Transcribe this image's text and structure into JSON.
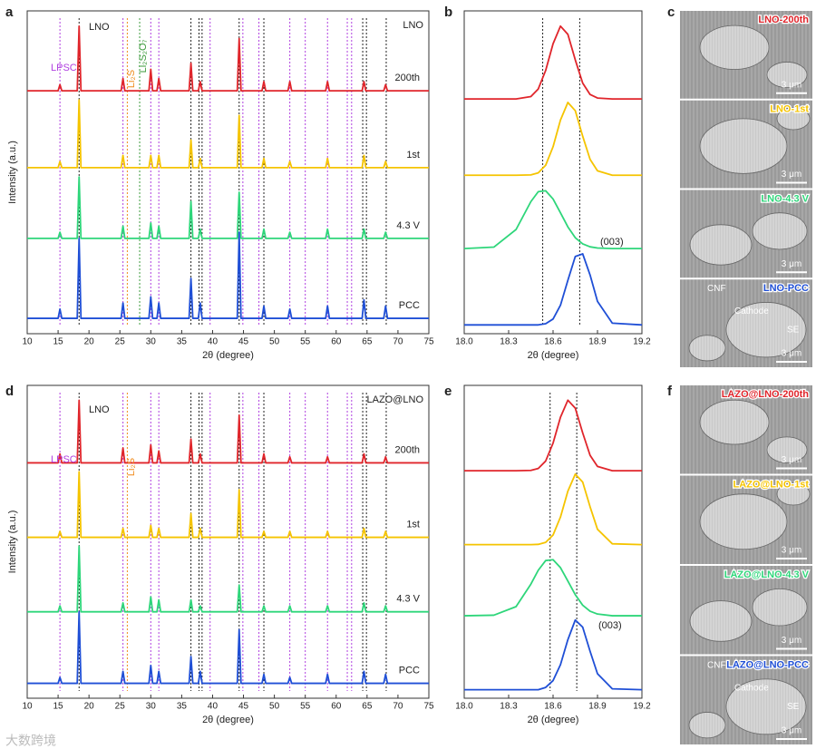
{
  "watermark": "大数跨境",
  "chart_data": [
    {
      "panel": "a",
      "type": "line",
      "xlabel": "2θ (degree)",
      "ylabel": "Intensity (a.u.)",
      "sample_label": "LNO",
      "xlim": [
        10,
        75
      ],
      "xticks": [
        10,
        15,
        20,
        25,
        30,
        35,
        40,
        45,
        50,
        55,
        60,
        65,
        70,
        75
      ],
      "ylim": [
        0,
        105
      ],
      "x": [
        10,
        15.0,
        15.3,
        15.6,
        18.1,
        18.4,
        18.7,
        25.2,
        25.5,
        25.8,
        29.7,
        30.0,
        30.3,
        31.0,
        31.3,
        31.6,
        36.2,
        36.5,
        36.8,
        37.7,
        38.0,
        38.3,
        44.0,
        44.3,
        44.6,
        48.0,
        48.3,
        48.6,
        52.2,
        52.5,
        52.8,
        58.3,
        58.6,
        58.9,
        64.2,
        64.5,
        64.8,
        67.7,
        68.0,
        68.3,
        75
      ],
      "series": [
        {
          "name": "200th",
          "color": "#e0252b",
          "values": [
            79,
            79,
            81,
            79,
            79,
            100,
            79,
            79,
            83,
            79,
            79,
            86,
            79,
            79,
            83,
            79,
            79,
            88,
            79,
            79,
            82,
            79,
            79,
            96,
            79,
            79,
            82,
            79,
            79,
            82,
            79,
            79,
            82,
            79,
            79,
            82,
            79,
            79,
            81,
            79,
            79
          ]
        },
        {
          "name": "1st",
          "color": "#f5c400",
          "values": [
            54,
            54,
            56,
            54,
            54,
            76,
            54,
            54,
            58,
            54,
            54,
            58,
            54,
            54,
            58,
            54,
            54,
            63,
            54,
            54,
            57,
            54,
            54,
            71,
            54,
            54,
            57,
            54,
            54,
            56,
            54,
            54,
            57,
            54,
            54,
            58,
            54,
            54,
            56,
            54,
            54
          ]
        },
        {
          "name": "4.3 V",
          "color": "#2ed67a",
          "values": [
            31,
            31,
            33,
            31,
            31,
            51,
            31,
            31,
            35,
            31,
            31,
            36,
            31,
            31,
            35,
            31,
            31,
            43,
            31,
            31,
            34,
            31,
            31,
            46,
            31,
            31,
            34,
            31,
            31,
            33,
            31,
            31,
            34,
            31,
            31,
            34,
            31,
            31,
            33,
            31,
            31
          ]
        },
        {
          "name": "PCC",
          "color": "#1f4fd6",
          "values": [
            5,
            5,
            8,
            5,
            5,
            31,
            5,
            5,
            10,
            5,
            5,
            12,
            5,
            5,
            10,
            5,
            5,
            18,
            5,
            5,
            10,
            5,
            5,
            33,
            5,
            5,
            9,
            5,
            5,
            8,
            5,
            5,
            9,
            5,
            5,
            11,
            5,
            5,
            9,
            5,
            5
          ]
        }
      ],
      "vlines": [
        {
          "x": 15.3,
          "color": "#b040e0"
        },
        {
          "x": 18.4,
          "color": "#222222"
        },
        {
          "x": 25.5,
          "color": "#b040e0"
        },
        {
          "x": 26.2,
          "color": "#f08c1e"
        },
        {
          "x": 28.2,
          "color": "#3a9a3a"
        },
        {
          "x": 30.0,
          "color": "#b040e0"
        },
        {
          "x": 31.3,
          "color": "#b040e0"
        },
        {
          "x": 36.5,
          "color": "#222222"
        },
        {
          "x": 37.8,
          "color": "#222222"
        },
        {
          "x": 38.3,
          "color": "#222222"
        },
        {
          "x": 39.6,
          "color": "#b040e0"
        },
        {
          "x": 44.3,
          "color": "#222222"
        },
        {
          "x": 44.9,
          "color": "#b040e0"
        },
        {
          "x": 47.5,
          "color": "#b040e0"
        },
        {
          "x": 48.3,
          "color": "#222222"
        },
        {
          "x": 52.5,
          "color": "#b040e0"
        },
        {
          "x": 55.0,
          "color": "#b040e0"
        },
        {
          "x": 58.6,
          "color": "#b040e0"
        },
        {
          "x": 61.8,
          "color": "#b040e0"
        },
        {
          "x": 62.5,
          "color": "#b040e0"
        },
        {
          "x": 64.3,
          "color": "#222222"
        },
        {
          "x": 64.9,
          "color": "#222222"
        },
        {
          "x": 68.1,
          "color": "#222222"
        }
      ],
      "annotations": [
        {
          "text": "LNO",
          "color": "#222222"
        },
        {
          "text": "LPSC",
          "color": "#b040e0"
        },
        {
          "text": "Li₂S",
          "color": "#f08c1e"
        },
        {
          "text": "Li₂S₂O₇",
          "color": "#3a9a3a"
        }
      ]
    },
    {
      "panel": "b",
      "type": "line",
      "xlabel": "2θ (degree)",
      "xlim": [
        18.0,
        19.2
      ],
      "xticks": [
        {
          "value": 18.0,
          "label": "18.0"
        },
        18.3,
        18.6,
        18.9,
        19.2
      ],
      "ylim": [
        0,
        110
      ],
      "x": [
        18.0,
        18.2,
        18.35,
        18.45,
        18.5,
        18.55,
        18.6,
        18.65,
        18.7,
        18.75,
        18.8,
        18.85,
        18.9,
        19.0,
        19.2
      ],
      "series": [
        {
          "name": "200th",
          "color": "#e0252b",
          "values": [
            80,
            80,
            80,
            80.8,
            83.4,
            89.7,
            98.8,
            104.8,
            102,
            93.3,
            85.4,
            81.5,
            80.3,
            80,
            80
          ]
        },
        {
          "name": "1st",
          "color": "#f5c400",
          "values": [
            54,
            54,
            54,
            54.1,
            54.8,
            57.4,
            63.7,
            72.8,
            78.8,
            76,
            67.3,
            59.4,
            55.5,
            54,
            54
          ]
        },
        {
          "name": "4.3 V",
          "color": "#2ed67a",
          "values": [
            29,
            29.5,
            35.5,
            45,
            48.4,
            48.7,
            45.9,
            41.2,
            36.4,
            32.7,
            30.6,
            29.6,
            29.2,
            29,
            29
          ]
        },
        {
          "name": "PCC",
          "color": "#1f4fd6",
          "values": [
            3,
            3,
            3,
            3,
            3,
            3.4,
            5,
            9.7,
            18.2,
            26.3,
            27.2,
            20,
            11,
            3.6,
            3
          ]
        }
      ],
      "vlines": [
        {
          "x": 18.53,
          "color": "#222222"
        },
        {
          "x": 18.78,
          "color": "#222222"
        }
      ],
      "annotations": [
        {
          "text": "(003)",
          "color": "#222222"
        }
      ]
    },
    {
      "panel": "d",
      "type": "line",
      "xlabel": "2θ (degree)",
      "ylabel": "Intensity (a.u.)",
      "sample_label": "LAZO@LNO",
      "xlim": [
        10,
        75
      ],
      "xticks": [
        10,
        15,
        20,
        25,
        30,
        35,
        40,
        45,
        50,
        55,
        60,
        65,
        70,
        75
      ],
      "ylim": [
        0,
        105
      ],
      "x": [
        10,
        15.0,
        15.3,
        15.6,
        18.1,
        18.4,
        18.7,
        25.2,
        25.5,
        25.8,
        29.7,
        30.0,
        30.3,
        31.0,
        31.3,
        31.6,
        36.2,
        36.5,
        36.8,
        37.7,
        38.0,
        38.3,
        44.0,
        44.3,
        44.6,
        48.0,
        48.3,
        48.6,
        52.2,
        52.5,
        52.8,
        58.3,
        58.6,
        58.9,
        64.2,
        64.5,
        64.8,
        67.7,
        68.0,
        68.3,
        75
      ],
      "series": [
        {
          "name": "200th",
          "color": "#e0252b",
          "values": [
            79,
            79,
            82,
            79,
            79,
            100,
            79,
            79,
            84,
            79,
            79,
            85,
            79,
            79,
            83,
            79,
            79,
            87,
            79,
            79,
            82,
            79,
            79,
            95,
            79,
            79,
            82,
            79,
            79,
            81,
            79,
            79,
            81,
            79,
            79,
            82,
            79,
            79,
            81,
            79,
            79
          ]
        },
        {
          "name": "1st",
          "color": "#f5c400",
          "values": [
            54,
            54,
            56,
            54,
            54,
            76,
            54,
            54,
            57,
            54,
            54,
            58,
            54,
            54,
            57,
            54,
            54,
            62,
            54,
            54,
            57,
            54,
            54,
            70,
            54,
            54,
            56,
            54,
            54,
            56,
            54,
            54,
            56,
            54,
            54,
            57,
            54,
            54,
            56,
            54,
            54
          ]
        },
        {
          "name": "4.3 V",
          "color": "#2ed67a",
          "values": [
            29,
            29,
            31,
            29,
            29,
            51,
            29,
            29,
            32,
            29,
            29,
            34,
            29,
            29,
            33,
            29,
            29,
            33,
            29,
            29,
            31,
            29,
            29,
            38,
            29,
            29,
            31,
            29,
            29,
            31,
            29,
            29,
            31,
            29,
            29,
            32,
            29,
            29,
            31,
            29,
            29
          ]
        },
        {
          "name": "PCC",
          "color": "#1f4fd6",
          "values": [
            5,
            5,
            7,
            5,
            5,
            29,
            5,
            5,
            9,
            5,
            5,
            11,
            5,
            5,
            9,
            5,
            5,
            14,
            5,
            5,
            9,
            5,
            5,
            23,
            5,
            5,
            8,
            5,
            5,
            7,
            5,
            5,
            8,
            5,
            5,
            9,
            5,
            5,
            8,
            5,
            5
          ]
        }
      ],
      "vlines": [
        {
          "x": 15.3,
          "color": "#b040e0"
        },
        {
          "x": 18.4,
          "color": "#222222"
        },
        {
          "x": 25.5,
          "color": "#b040e0"
        },
        {
          "x": 26.2,
          "color": "#f08c1e"
        },
        {
          "x": 30.0,
          "color": "#b040e0"
        },
        {
          "x": 31.3,
          "color": "#b040e0"
        },
        {
          "x": 36.5,
          "color": "#222222"
        },
        {
          "x": 37.8,
          "color": "#222222"
        },
        {
          "x": 38.3,
          "color": "#222222"
        },
        {
          "x": 39.6,
          "color": "#b040e0"
        },
        {
          "x": 44.3,
          "color": "#222222"
        },
        {
          "x": 44.9,
          "color": "#b040e0"
        },
        {
          "x": 47.5,
          "color": "#b040e0"
        },
        {
          "x": 48.3,
          "color": "#222222"
        },
        {
          "x": 52.5,
          "color": "#b040e0"
        },
        {
          "x": 55.0,
          "color": "#b040e0"
        },
        {
          "x": 58.6,
          "color": "#b040e0"
        },
        {
          "x": 61.8,
          "color": "#b040e0"
        },
        {
          "x": 62.5,
          "color": "#b040e0"
        },
        {
          "x": 64.3,
          "color": "#222222"
        },
        {
          "x": 64.9,
          "color": "#222222"
        },
        {
          "x": 68.1,
          "color": "#222222"
        }
      ],
      "annotations": [
        {
          "text": "LNO",
          "color": "#222222"
        },
        {
          "text": "LPSC",
          "color": "#b040e0"
        },
        {
          "text": "Li₂S",
          "color": "#f08c1e"
        }
      ]
    },
    {
      "panel": "e",
      "type": "line",
      "xlabel": "2θ (degree)",
      "xlim": [
        18.0,
        19.2
      ],
      "xticks": [
        {
          "value": 18.0,
          "label": "18.0"
        },
        18.3,
        18.6,
        18.9,
        19.2
      ],
      "ylim": [
        0,
        110
      ],
      "x": [
        18.0,
        18.2,
        18.35,
        18.45,
        18.5,
        18.55,
        18.6,
        18.65,
        18.7,
        18.75,
        18.8,
        18.85,
        18.9,
        19.0,
        19.2
      ],
      "series": [
        {
          "name": "200th",
          "color": "#e0252b",
          "values": [
            80,
            80,
            80,
            80.1,
            80.8,
            83.4,
            89.7,
            98.8,
            104.8,
            102,
            93.3,
            85.4,
            81.5,
            80,
            80
          ]
        },
        {
          "name": "1st",
          "color": "#f5c400",
          "values": [
            54,
            54,
            54,
            54,
            54.1,
            54.8,
            57.4,
            63.7,
            72.8,
            78.8,
            76,
            67.3,
            59.4,
            54.3,
            54
          ]
        },
        {
          "name": "4.3 V",
          "color": "#2ed67a",
          "values": [
            29,
            29.2,
            32.2,
            40.1,
            45,
            48.4,
            48.7,
            45.9,
            41.2,
            36.4,
            32.7,
            30.6,
            29.6,
            29,
            29
          ]
        },
        {
          "name": "PCC",
          "color": "#1f4fd6",
          "values": [
            3,
            3,
            3,
            3,
            3,
            3.8,
            6.2,
            11.8,
            20.6,
            27.5,
            25,
            16.5,
            8.6,
            3.3,
            3
          ]
        }
      ],
      "vlines": [
        {
          "x": 18.58,
          "color": "#222222"
        },
        {
          "x": 18.76,
          "color": "#222222"
        }
      ],
      "annotations": [
        {
          "text": "(003)",
          "color": "#222222"
        }
      ]
    }
  ],
  "micrographs": [
    {
      "panel": "c",
      "scale_bar": "3 μm",
      "images": [
        {
          "label": "LNO-200th",
          "color": "#e0252b"
        },
        {
          "label": "LNO-1st",
          "color": "#f5c400"
        },
        {
          "label": "LNO-4.3 V",
          "color": "#2ed67a"
        },
        {
          "label": "LNO-PCC",
          "color": "#1f4fd6",
          "annotations": [
            "CNF",
            "Cathode",
            "SE"
          ]
        }
      ]
    },
    {
      "panel": "f",
      "scale_bar": "3 μm",
      "images": [
        {
          "label": "LAZO@LNO-200th",
          "color": "#e0252b"
        },
        {
          "label": "LAZO@LNO-1st",
          "color": "#f5c400"
        },
        {
          "label": "LAZO@LNO-4.3 V",
          "color": "#2ed67a"
        },
        {
          "label": "LAZO@LNO-PCC",
          "color": "#1f4fd6",
          "annotations": [
            "CNF",
            "Cathode",
            "SE"
          ]
        }
      ]
    }
  ]
}
